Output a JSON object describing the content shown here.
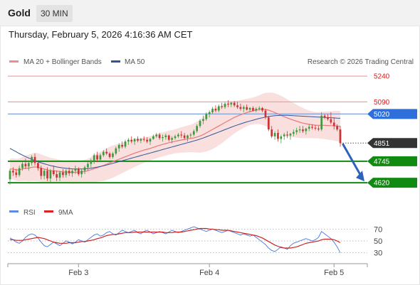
{
  "header": {
    "symbol": "Gold",
    "timeframe": "30 MIN"
  },
  "timestamp": "Thursday, February 5, 2026 4:16:36 AM CET",
  "legend": {
    "ma20": "MA 20 + Bollinger Bands",
    "ma50": "MA 50",
    "credit": "Research © 2026 Trading Central"
  },
  "rsi_legend": {
    "rsi": "RSI",
    "ma": "9MA"
  },
  "colors": {
    "up": "#3d9a3d",
    "down": "#cc3333",
    "ma20": "#e87878",
    "band": "#f9d9d9",
    "ma50": "#2f5597",
    "blue_level": "#2e6fdc",
    "green_level": "#108a10",
    "current": "#333333",
    "rsi": "#4477dd",
    "rsi_ma": "#cc2222"
  },
  "chart_data": [
    {
      "type": "candlestick",
      "title": "",
      "x_labels": [
        "Feb 3",
        "Feb 4",
        "Feb 5"
      ],
      "price_levels": [
        {
          "label": "5240",
          "value": 5240,
          "style": "resistance-thin"
        },
        {
          "label": "5090",
          "value": 5090,
          "style": "resistance-thin"
        },
        {
          "label": "5020",
          "value": 5020,
          "style": "pivot-blue"
        },
        {
          "label": "4851",
          "value": 4851,
          "style": "current-price"
        },
        {
          "label": "4745",
          "value": 4745,
          "style": "support-green"
        },
        {
          "label": "4620",
          "value": 4620,
          "style": "support-green"
        }
      ],
      "projection": {
        "from": 4851,
        "to": 4620,
        "direction": "down"
      },
      "ylim": [
        4600,
        5290
      ],
      "candles": [
        [
          4640,
          4700,
          4610,
          4690
        ],
        [
          4690,
          4710,
          4660,
          4680
        ],
        [
          4680,
          4700,
          4650,
          4665
        ],
        [
          4665,
          4720,
          4655,
          4705
        ],
        [
          4705,
          4740,
          4690,
          4730
        ],
        [
          4730,
          4760,
          4700,
          4715
        ],
        [
          4715,
          4745,
          4690,
          4735
        ],
        [
          4735,
          4780,
          4720,
          4770
        ],
        [
          4770,
          4790,
          4720,
          4735
        ],
        [
          4735,
          4750,
          4690,
          4705
        ],
        [
          4705,
          4720,
          4640,
          4660
        ],
        [
          4660,
          4700,
          4640,
          4690
        ],
        [
          4690,
          4710,
          4630,
          4645
        ],
        [
          4645,
          4700,
          4620,
          4690
        ],
        [
          4690,
          4720,
          4660,
          4670
        ],
        [
          4670,
          4690,
          4630,
          4650
        ],
        [
          4650,
          4690,
          4630,
          4680
        ],
        [
          4680,
          4700,
          4650,
          4665
        ],
        [
          4665,
          4700,
          4650,
          4690
        ],
        [
          4690,
          4710,
          4660,
          4675
        ],
        [
          4675,
          4700,
          4655,
          4690
        ],
        [
          4690,
          4720,
          4670,
          4700
        ],
        [
          4700,
          4710,
          4660,
          4670
        ],
        [
          4670,
          4700,
          4650,
          4690
        ],
        [
          4690,
          4720,
          4670,
          4710
        ],
        [
          4710,
          4740,
          4690,
          4730
        ],
        [
          4730,
          4760,
          4710,
          4750
        ],
        [
          4750,
          4790,
          4730,
          4780
        ],
        [
          4780,
          4800,
          4740,
          4755
        ],
        [
          4755,
          4790,
          4740,
          4780
        ],
        [
          4780,
          4810,
          4770,
          4800
        ],
        [
          4800,
          4820,
          4780,
          4790
        ],
        [
          4790,
          4800,
          4760,
          4770
        ],
        [
          4770,
          4800,
          4760,
          4790
        ],
        [
          4790,
          4830,
          4780,
          4820
        ],
        [
          4820,
          4850,
          4800,
          4840
        ],
        [
          4840,
          4860,
          4820,
          4830
        ],
        [
          4830,
          4870,
          4820,
          4860
        ],
        [
          4860,
          4880,
          4840,
          4870
        ],
        [
          4870,
          4890,
          4850,
          4860
        ],
        [
          4860,
          4880,
          4840,
          4875
        ],
        [
          4875,
          4890,
          4855,
          4865
        ],
        [
          4865,
          4880,
          4850,
          4875
        ],
        [
          4875,
          4890,
          4860,
          4870
        ],
        [
          4870,
          4885,
          4850,
          4860
        ],
        [
          4860,
          4880,
          4840,
          4875
        ],
        [
          4875,
          4900,
          4870,
          4890
        ],
        [
          4890,
          4910,
          4880,
          4900
        ],
        [
          4900,
          4910,
          4870,
          4880
        ],
        [
          4880,
          4900,
          4860,
          4885
        ],
        [
          4885,
          4905,
          4870,
          4895
        ],
        [
          4895,
          4900,
          4860,
          4870
        ],
        [
          4870,
          4890,
          4850,
          4880
        ],
        [
          4880,
          4900,
          4870,
          4890
        ],
        [
          4890,
          4910,
          4880,
          4900
        ],
        [
          4900,
          4920,
          4880,
          4895
        ],
        [
          4895,
          4910,
          4870,
          4880
        ],
        [
          4880,
          4900,
          4860,
          4895
        ],
        [
          4895,
          4910,
          4880,
          4900
        ],
        [
          4900,
          4930,
          4890,
          4920
        ],
        [
          4920,
          4960,
          4910,
          4950
        ],
        [
          4950,
          4990,
          4940,
          4980
        ],
        [
          4980,
          5010,
          4960,
          4990
        ],
        [
          4990,
          5030,
          4980,
          5020
        ],
        [
          5020,
          5040,
          5000,
          5030
        ],
        [
          5030,
          5060,
          5020,
          5050
        ],
        [
          5050,
          5070,
          5030,
          5040
        ],
        [
          5040,
          5075,
          5030,
          5065
        ],
        [
          5065,
          5085,
          5050,
          5060
        ],
        [
          5060,
          5090,
          5050,
          5080
        ],
        [
          5080,
          5100,
          5060,
          5075
        ],
        [
          5075,
          5090,
          5060,
          5085
        ],
        [
          5085,
          5095,
          5060,
          5070
        ],
        [
          5070,
          5090,
          5050,
          5060
        ],
        [
          5060,
          5080,
          5040,
          5050
        ],
        [
          5050,
          5070,
          5030,
          5060
        ],
        [
          5060,
          5075,
          5040,
          5045
        ],
        [
          5045,
          5060,
          5030,
          5055
        ],
        [
          5055,
          5065,
          5035,
          5040
        ],
        [
          5040,
          5060,
          5030,
          5050
        ],
        [
          5050,
          5065,
          5040,
          5055
        ],
        [
          5055,
          5060,
          5030,
          5040
        ],
        [
          5040,
          5050,
          4990,
          5000
        ],
        [
          5000,
          5010,
          4920,
          4930
        ],
        [
          4930,
          4950,
          4880,
          4890
        ],
        [
          4890,
          4920,
          4870,
          4910
        ],
        [
          4910,
          4930,
          4860,
          4875
        ],
        [
          4875,
          4900,
          4850,
          4890
        ],
        [
          4890,
          4910,
          4870,
          4900
        ],
        [
          4900,
          4920,
          4880,
          4895
        ],
        [
          4895,
          4910,
          4870,
          4905
        ],
        [
          4905,
          4930,
          4890,
          4915
        ],
        [
          4915,
          4940,
          4900,
          4925
        ],
        [
          4925,
          4950,
          4910,
          4930
        ],
        [
          4930,
          4950,
          4910,
          4920
        ],
        [
          4920,
          4940,
          4900,
          4935
        ],
        [
          4935,
          4960,
          4920,
          4945
        ],
        [
          4945,
          4960,
          4930,
          4940
        ],
        [
          4940,
          4955,
          4925,
          4935
        ],
        [
          4935,
          4950,
          4920,
          4930
        ],
        [
          4930,
          5030,
          4920,
          5010
        ],
        [
          5010,
          5020,
          4990,
          5000
        ],
        [
          5000,
          5020,
          4980,
          4990
        ],
        [
          4990,
          5030,
          4960,
          4970
        ],
        [
          4970,
          5000,
          4930,
          4950
        ],
        [
          4950,
          4960,
          4920,
          4930
        ],
        [
          4930,
          4950,
          4830,
          4851
        ]
      ],
      "ma20": [
        4700,
        4700,
        4695,
        4695,
        4700,
        4705,
        4705,
        4710,
        4712,
        4710,
        4705,
        4700,
        4695,
        4690,
        4690,
        4688,
        4685,
        4683,
        4682,
        4682,
        4680,
        4681,
        4682,
        4683,
        4685,
        4690,
        4696,
        4702,
        4708,
        4714,
        4720,
        4728,
        4736,
        4743,
        4750,
        4757,
        4764,
        4771,
        4778,
        4785,
        4792,
        4798,
        4804,
        4810,
        4815,
        4820,
        4826,
        4832,
        4838,
        4843,
        4848,
        4853,
        4857,
        4861,
        4865,
        4869,
        4872,
        4875,
        4878,
        4881,
        4886,
        4892,
        4900,
        4910,
        4920,
        4930,
        4940,
        4950,
        4960,
        4970,
        4980,
        4990,
        5000,
        5008,
        5015,
        5022,
        5028,
        5034,
        5038,
        5042,
        5045,
        5047,
        5046,
        5042,
        5036,
        5028,
        5020,
        5012,
        5004,
        4997,
        4990,
        4984,
        4978,
        4972,
        4967,
        4963,
        4960,
        4957,
        4955,
        4954,
        4954,
        4954,
        4953,
        4952,
        4951,
        4950,
        4948
      ],
      "ma50": [
        4820,
        4810,
        4800,
        4790,
        4781,
        4772,
        4764,
        4756,
        4749,
        4742,
        4736,
        4730,
        4725,
        4720,
        4716,
        4712,
        4709,
        4706,
        4704,
        4702,
        4701,
        4700,
        4700,
        4700,
        4701,
        4703,
        4705,
        4708,
        4711,
        4715,
        4719,
        4723,
        4728,
        4733,
        4738,
        4743,
        4748,
        4753,
        4758,
        4763,
        4768,
        4773,
        4778,
        4783,
        4788,
        4793,
        4798,
        4803,
        4808,
        4813,
        4818,
        4823,
        4828,
        4833,
        4838,
        4843,
        4848,
        4853,
        4858,
        4863,
        4868,
        4874,
        4880,
        4887,
        4894,
        4901,
        4908,
        4915,
        4922,
        4929,
        4936,
        4943,
        4950,
        4956,
        4962,
        4968,
        4974,
        4979,
        4984,
        4989,
        4994,
        4998,
        5002,
        5005,
        5008,
        5010,
        5011,
        5012,
        5012,
        5012,
        5011,
        5010,
        5009,
        5008,
        5007,
        5006,
        5005,
        5004,
        5003,
        5002,
        5001,
        5000,
        4999,
        4998,
        4997,
        4996,
        4995
      ],
      "band_width": [
        60,
        62,
        64,
        66,
        70,
        74,
        78,
        80,
        82,
        82,
        80,
        78,
        76,
        74,
        72,
        70,
        68,
        66,
        66,
        66,
        66,
        66,
        66,
        66,
        68,
        70,
        74,
        78,
        82,
        86,
        90,
        92,
        94,
        94,
        92,
        90,
        88,
        86,
        84,
        82,
        80,
        78,
        76,
        74,
        72,
        70,
        70,
        70,
        70,
        70,
        70,
        70,
        70,
        70,
        72,
        74,
        76,
        78,
        80,
        84,
        90,
        96,
        102,
        108,
        112,
        114,
        114,
        112,
        110,
        106,
        102,
        98,
        94,
        90,
        86,
        82,
        80,
        78,
        78,
        80,
        84,
        90,
        96,
        102,
        108,
        112,
        114,
        114,
        112,
        108,
        104,
        100,
        96,
        92,
        88,
        84,
        80,
        78,
        76,
        76,
        78,
        80,
        82,
        84,
        86,
        88,
        90
      ]
    },
    {
      "type": "line",
      "title": "",
      "yticks": [
        30,
        50,
        70
      ],
      "ylim": [
        20,
        80
      ],
      "series": [
        {
          "name": "RSI",
          "values": [
            55,
            52,
            48,
            46,
            50,
            56,
            60,
            62,
            60,
            55,
            48,
            42,
            40,
            44,
            48,
            45,
            42,
            46,
            50,
            48,
            45,
            48,
            52,
            50,
            48,
            52,
            56,
            60,
            62,
            58,
            60,
            64,
            66,
            62,
            60,
            64,
            68,
            66,
            64,
            66,
            68,
            64,
            62,
            66,
            68,
            65,
            62,
            64,
            66,
            64,
            62,
            65,
            68,
            66,
            64,
            66,
            68,
            70,
            72,
            74,
            72,
            70,
            68,
            66,
            68,
            70,
            68,
            66,
            64,
            66,
            68,
            66,
            64,
            62,
            60,
            62,
            60,
            58,
            60,
            56,
            52,
            48,
            44,
            38,
            34,
            32,
            36,
            40,
            38,
            36,
            42,
            46,
            48,
            50,
            52,
            54,
            52,
            50,
            52,
            56,
            66,
            62,
            58,
            54,
            48,
            40,
            30
          ]
        },
        {
          "name": "9MA",
          "values": [
            52,
            52,
            51,
            51,
            51,
            52,
            53,
            54,
            55,
            56,
            55,
            54,
            52,
            50,
            48,
            47,
            46,
            46,
            46,
            47,
            47,
            47,
            48,
            49,
            49,
            50,
            51,
            52,
            54,
            55,
            57,
            59,
            60,
            61,
            61,
            62,
            63,
            64,
            64,
            64,
            65,
            65,
            65,
            65,
            65,
            65,
            65,
            65,
            65,
            65,
            64,
            64,
            64,
            65,
            65,
            65,
            66,
            67,
            68,
            69,
            70,
            71,
            71,
            71,
            70,
            70,
            69,
            69,
            68,
            68,
            68,
            67,
            66,
            65,
            64,
            63,
            62,
            61,
            60,
            59,
            57,
            55,
            52,
            49,
            46,
            43,
            41,
            39,
            38,
            38,
            38,
            39,
            40,
            42,
            44,
            46,
            47,
            48,
            49,
            50,
            52,
            53,
            53,
            53,
            52,
            50,
            47
          ]
        }
      ]
    }
  ]
}
